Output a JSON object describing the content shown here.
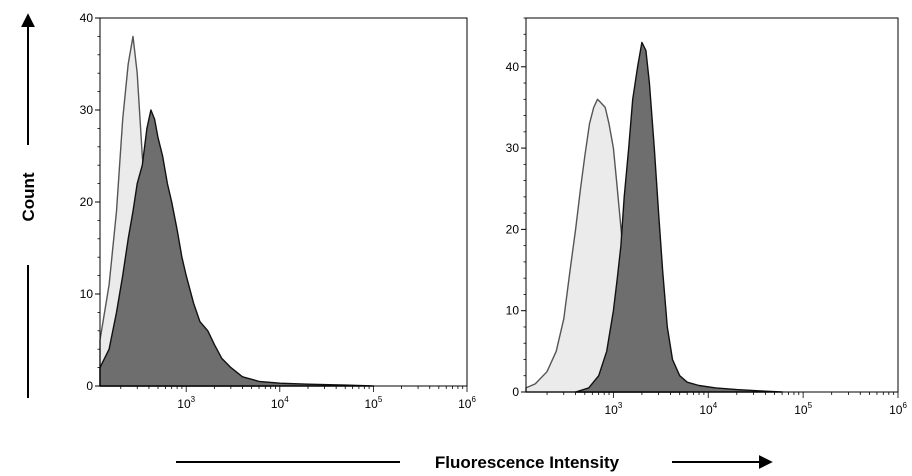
{
  "figure": {
    "y_axis_title": "Count",
    "x_axis_title": "Fluorescence Intensity"
  },
  "chart_data": [
    {
      "type": "area",
      "x_scale": "log",
      "xlim": [
        120,
        1000000
      ],
      "ylim": [
        0,
        40
      ],
      "y_ticks": [
        "0",
        "10",
        "20",
        "30",
        "40"
      ],
      "x_ticks": [
        {
          "base": "10",
          "exp": "3"
        },
        {
          "base": "10",
          "exp": "4"
        },
        {
          "base": "10",
          "exp": "5"
        },
        {
          "base": "10",
          "exp": "6"
        }
      ],
      "series": [
        {
          "fill": "#ebebeb",
          "stroke": "#555555",
          "points": [
            [
              120,
              5
            ],
            [
              150,
              11
            ],
            [
              180,
              19
            ],
            [
              210,
              29
            ],
            [
              240,
              35
            ],
            [
              270,
              38
            ],
            [
              300,
              34
            ],
            [
              340,
              25
            ],
            [
              380,
              20
            ],
            [
              430,
              17
            ],
            [
              480,
              15
            ],
            [
              550,
              12.5
            ],
            [
              630,
              11
            ],
            [
              720,
              9
            ],
            [
              850,
              7
            ],
            [
              1000,
              5
            ],
            [
              1200,
              3.2
            ],
            [
              1500,
              2
            ],
            [
              2000,
              1.2
            ],
            [
              2700,
              0.7
            ],
            [
              3500,
              0.4
            ],
            [
              5000,
              0.2
            ],
            [
              8000,
              0
            ]
          ]
        },
        {
          "fill": "#6e6e6e",
          "stroke": "#111111",
          "points": [
            [
              120,
              2
            ],
            [
              150,
              4
            ],
            [
              180,
              8
            ],
            [
              210,
              12
            ],
            [
              240,
              16
            ],
            [
              270,
              19
            ],
            [
              300,
              22
            ],
            [
              340,
              24
            ],
            [
              380,
              28
            ],
            [
              420,
              30
            ],
            [
              460,
              29
            ],
            [
              500,
              27
            ],
            [
              560,
              25
            ],
            [
              630,
              22
            ],
            [
              700,
              20
            ],
            [
              800,
              17
            ],
            [
              900,
              14
            ],
            [
              1000,
              12
            ],
            [
              1200,
              9
            ],
            [
              1400,
              7
            ],
            [
              1700,
              6
            ],
            [
              2000,
              4.5
            ],
            [
              2400,
              3
            ],
            [
              3000,
              2
            ],
            [
              4000,
              1
            ],
            [
              6000,
              0.5
            ],
            [
              10000,
              0.3
            ],
            [
              20000,
              0.2
            ],
            [
              50000,
              0.1
            ],
            [
              100000,
              0
            ]
          ]
        }
      ]
    },
    {
      "type": "area",
      "x_scale": "log",
      "xlim": [
        120,
        1000000
      ],
      "ylim": [
        0,
        46
      ],
      "y_ticks": [
        "0",
        "10",
        "20",
        "30",
        "40"
      ],
      "x_ticks": [
        {
          "base": "10",
          "exp": "3"
        },
        {
          "base": "10",
          "exp": "4"
        },
        {
          "base": "10",
          "exp": "5"
        },
        {
          "base": "10",
          "exp": "6"
        }
      ],
      "series": [
        {
          "fill": "#ebebeb",
          "stroke": "#555555",
          "points": [
            [
              120,
              0.5
            ],
            [
              150,
              1
            ],
            [
              200,
              2.5
            ],
            [
              250,
              5
            ],
            [
              300,
              9
            ],
            [
              350,
              15
            ],
            [
              400,
              20
            ],
            [
              450,
              25
            ],
            [
              500,
              29
            ],
            [
              560,
              33
            ],
            [
              620,
              35
            ],
            [
              680,
              36
            ],
            [
              750,
              35.5
            ],
            [
              820,
              35
            ],
            [
              900,
              33
            ],
            [
              1000,
              30
            ],
            [
              1100,
              25
            ],
            [
              1250,
              18
            ],
            [
              1400,
              12
            ],
            [
              1600,
              7
            ],
            [
              1900,
              3.5
            ],
            [
              2300,
              2
            ],
            [
              3000,
              1
            ],
            [
              4000,
              0.5
            ],
            [
              6000,
              0
            ]
          ]
        },
        {
          "fill": "#6e6e6e",
          "stroke": "#111111",
          "points": [
            [
              400,
              0
            ],
            [
              550,
              0.5
            ],
            [
              700,
              2
            ],
            [
              850,
              5
            ],
            [
              1000,
              10
            ],
            [
              1100,
              14
            ],
            [
              1200,
              18
            ],
            [
              1300,
              24
            ],
            [
              1450,
              30
            ],
            [
              1600,
              36
            ],
            [
              1800,
              40
            ],
            [
              2000,
              43
            ],
            [
              2200,
              42
            ],
            [
              2400,
              38
            ],
            [
              2700,
              30
            ],
            [
              3000,
              22
            ],
            [
              3300,
              15
            ],
            [
              3700,
              8
            ],
            [
              4200,
              4
            ],
            [
              5000,
              2
            ],
            [
              6000,
              1.2
            ],
            [
              8000,
              0.8
            ],
            [
              12000,
              0.5
            ],
            [
              20000,
              0.3
            ],
            [
              40000,
              0.1
            ],
            [
              60000,
              0
            ]
          ]
        }
      ]
    }
  ]
}
